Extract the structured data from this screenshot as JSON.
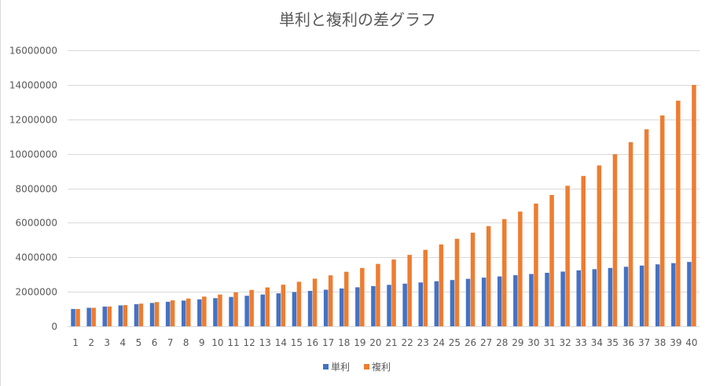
{
  "chart_data": {
    "type": "bar",
    "title": "単利と複利の差グラフ",
    "xlabel": "",
    "ylabel": "",
    "ylim": [
      0,
      16000000
    ],
    "yticks": [
      0,
      2000000,
      4000000,
      6000000,
      8000000,
      10000000,
      12000000,
      14000000,
      16000000
    ],
    "grid": true,
    "legend_position": "bottom",
    "categories": [
      "1",
      "2",
      "3",
      "4",
      "5",
      "6",
      "7",
      "8",
      "9",
      "10",
      "11",
      "12",
      "13",
      "14",
      "15",
      "16",
      "17",
      "18",
      "19",
      "20",
      "21",
      "22",
      "23",
      "24",
      "25",
      "26",
      "27",
      "28",
      "29",
      "30",
      "31",
      "32",
      "33",
      "34",
      "35",
      "36",
      "37",
      "38",
      "39",
      "40"
    ],
    "series": [
      {
        "name": "単利",
        "color": "#4472C4",
        "values": [
          1000000,
          1070000,
          1140000,
          1210000,
          1280000,
          1350000,
          1420000,
          1490000,
          1560000,
          1630000,
          1700000,
          1770000,
          1840000,
          1910000,
          1980000,
          2050000,
          2120000,
          2190000,
          2260000,
          2330000,
          2400000,
          2470000,
          2540000,
          2610000,
          2680000,
          2750000,
          2820000,
          2890000,
          2960000,
          3030000,
          3100000,
          3170000,
          3240000,
          3310000,
          3380000,
          3450000,
          3520000,
          3590000,
          3660000,
          3730000
        ]
      },
      {
        "name": "複利",
        "color": "#ED7D31",
        "values": [
          1000000,
          1070000,
          1144900,
          1225043,
          1310796,
          1402552,
          1500730,
          1605781,
          1718186,
          1838459,
          1967151,
          2104852,
          2252192,
          2409845,
          2578534,
          2759032,
          2952164,
          3158815,
          3379932,
          3616528,
          3869684,
          4140562,
          4430402,
          4740530,
          5072367,
          5427433,
          5807353,
          6213868,
          6648838,
          7114257,
          7612255,
          8145113,
          8715271,
          9325340,
          9978114,
          10676581,
          11423942,
          12223618,
          13079271,
          13994820
        ]
      }
    ]
  }
}
